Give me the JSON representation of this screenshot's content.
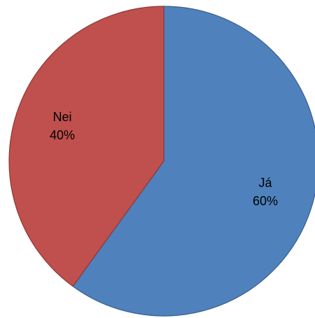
{
  "chart_data": {
    "type": "pie",
    "title": "",
    "start_angle_deg": 0,
    "direction": "clockwise",
    "legend": "none",
    "slices": [
      {
        "category": "Já",
        "value": 60,
        "label": "60%",
        "color": "#4F81BD",
        "stroke": "#3A5F8B"
      },
      {
        "category": "Nei",
        "value": 40,
        "label": "40%",
        "color": "#C0504D",
        "stroke": "#8C3836"
      }
    ]
  }
}
